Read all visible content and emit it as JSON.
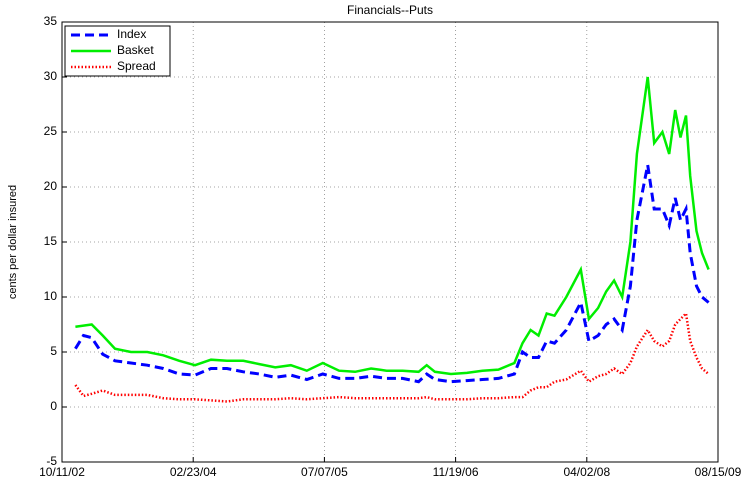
{
  "chart_data": {
    "type": "line",
    "title": "Financials--Puts",
    "y_label": "cents per dollar insured",
    "x": [
      "12/01/02",
      "01/01/03",
      "02/01/03",
      "03/15/03",
      "05/01/03",
      "07/01/03",
      "09/01/03",
      "11/01/03",
      "01/01/04",
      "03/01/04",
      "05/01/04",
      "07/01/04",
      "09/01/04",
      "11/01/04",
      "01/01/05",
      "03/01/05",
      "05/01/05",
      "07/01/05",
      "09/01/05",
      "11/01/05",
      "01/01/06",
      "03/01/06",
      "05/01/06",
      "07/01/06",
      "08/01/06",
      "09/01/06",
      "11/01/06",
      "01/01/07",
      "03/01/07",
      "05/01/07",
      "07/01/07",
      "08/01/07",
      "09/01/07",
      "10/01/07",
      "11/01/07",
      "12/01/07",
      "01/15/08",
      "03/10/08",
      "04/10/08",
      "05/15/08",
      "06/15/08",
      "07/15/08",
      "08/15/08",
      "09/15/08",
      "10/10/08",
      "11/20/08",
      "12/15/08",
      "01/15/09",
      "02/10/09",
      "03/05/09",
      "03/25/09",
      "04/15/09",
      "05/01/09",
      "05/25/09",
      "06/15/09",
      "07/10/09"
    ],
    "series": [
      {
        "name": "Index",
        "color": "#0000ff",
        "style": "dashed",
        "values": [
          5.3,
          6.5,
          6.3,
          4.8,
          4.2,
          4.0,
          3.8,
          3.5,
          3.0,
          2.9,
          3.5,
          3.5,
          3.2,
          3.0,
          2.7,
          2.9,
          2.5,
          3.0,
          2.6,
          2.6,
          2.8,
          2.6,
          2.6,
          2.3,
          3.0,
          2.5,
          2.3,
          2.4,
          2.5,
          2.6,
          3.0,
          5.0,
          4.5,
          4.5,
          6.0,
          5.8,
          7.0,
          9.5,
          6.0,
          6.5,
          7.5,
          8.0,
          7.0,
          11.0,
          17.0,
          22.0,
          18.0,
          18.0,
          16.5,
          19.0,
          17.0,
          18.0,
          14.0,
          11.0,
          10.0,
          9.5
        ]
      },
      {
        "name": "Basket",
        "color": "#00ee00",
        "style": "solid",
        "values": [
          7.3,
          7.4,
          7.5,
          6.5,
          5.3,
          5.0,
          5.0,
          4.7,
          4.2,
          3.8,
          4.3,
          4.2,
          4.2,
          3.9,
          3.6,
          3.8,
          3.3,
          4.0,
          3.3,
          3.2,
          3.5,
          3.3,
          3.3,
          3.2,
          3.8,
          3.2,
          3.0,
          3.1,
          3.3,
          3.4,
          4.0,
          5.8,
          7.0,
          6.5,
          8.5,
          8.3,
          10.0,
          12.5,
          8.0,
          9.0,
          10.5,
          11.5,
          10.0,
          15.0,
          23.0,
          30.0,
          24.0,
          25.0,
          23.0,
          27.0,
          24.5,
          26.5,
          21.0,
          16.0,
          14.0,
          12.5
        ]
      },
      {
        "name": "Spread",
        "color": "#ff0000",
        "style": "dotted",
        "values": [
          2.0,
          1.0,
          1.2,
          1.5,
          1.1,
          1.1,
          1.1,
          0.8,
          0.7,
          0.7,
          0.6,
          0.5,
          0.7,
          0.7,
          0.7,
          0.8,
          0.7,
          0.8,
          0.9,
          0.8,
          0.8,
          0.8,
          0.8,
          0.8,
          0.9,
          0.7,
          0.7,
          0.7,
          0.8,
          0.8,
          0.9,
          0.9,
          1.5,
          1.8,
          1.8,
          2.3,
          2.5,
          3.3,
          2.3,
          2.8,
          3.0,
          3.5,
          3.0,
          4.0,
          5.5,
          7.0,
          6.0,
          5.5,
          6.0,
          7.5,
          8.0,
          8.5,
          6.0,
          4.5,
          3.5,
          3.0
        ]
      }
    ],
    "xlim": [
      "10/11/02",
      "08/15/09"
    ],
    "xticks": [
      "10/11/02",
      "02/23/04",
      "07/07/05",
      "11/19/06",
      "04/02/08",
      "08/15/09"
    ],
    "ylim": [
      -5,
      35
    ],
    "yticks": [
      -5,
      0,
      5,
      10,
      15,
      20,
      25,
      30,
      35
    ],
    "grid": true,
    "legend": "upper left"
  }
}
